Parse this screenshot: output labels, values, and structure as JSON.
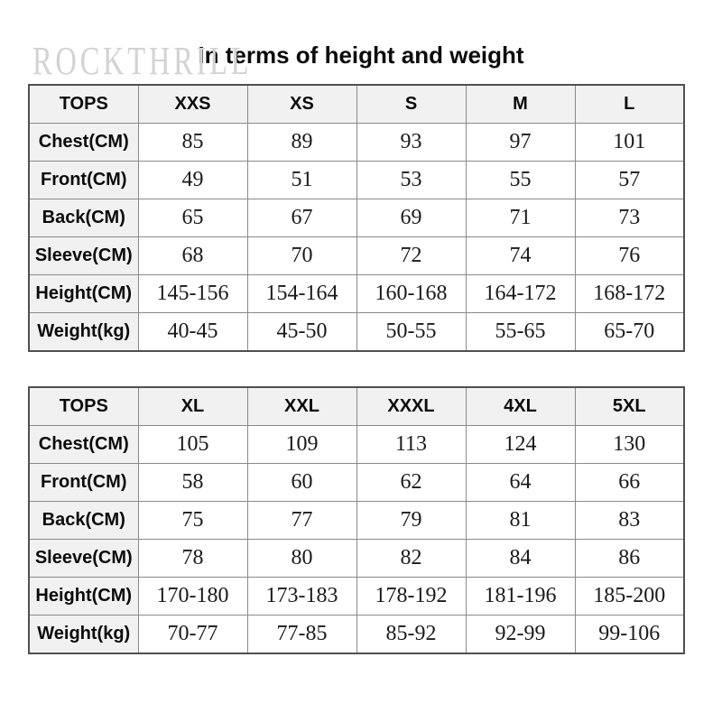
{
  "watermark": "ROCKTHRILL",
  "title": "In terms of height and weight",
  "tables": [
    {
      "name": "sizes-xxs-to-l",
      "header": [
        "TOPS",
        "XXS",
        "XS",
        "S",
        "M",
        "L"
      ],
      "rows": [
        {
          "label": "Chest(CM)",
          "values": [
            "85",
            "89",
            "93",
            "97",
            "101"
          ]
        },
        {
          "label": "Front(CM)",
          "values": [
            "49",
            "51",
            "53",
            "55",
            "57"
          ]
        },
        {
          "label": "Back(CM)",
          "values": [
            "65",
            "67",
            "69",
            "71",
            "73"
          ]
        },
        {
          "label": "Sleeve(CM)",
          "values": [
            "68",
            "70",
            "72",
            "74",
            "76"
          ]
        },
        {
          "label": "Height(CM)",
          "values": [
            "145-156",
            "154-164",
            "160-168",
            "164-172",
            "168-172"
          ]
        },
        {
          "label": "Weight(kg)",
          "values": [
            "40-45",
            "45-50",
            "50-55",
            "55-65",
            "65-70"
          ]
        }
      ]
    },
    {
      "name": "sizes-xl-to-5xl",
      "header": [
        "TOPS",
        "XL",
        "XXL",
        "XXXL",
        "4XL",
        "5XL"
      ],
      "rows": [
        {
          "label": "Chest(CM)",
          "values": [
            "105",
            "109",
            "113",
            "124",
            "130"
          ]
        },
        {
          "label": "Front(CM)",
          "values": [
            "58",
            "60",
            "62",
            "64",
            "66"
          ]
        },
        {
          "label": "Back(CM)",
          "values": [
            "75",
            "77",
            "79",
            "81",
            "83"
          ]
        },
        {
          "label": "Sleeve(CM)",
          "values": [
            "78",
            "80",
            "82",
            "84",
            "86"
          ]
        },
        {
          "label": "Height(CM)",
          "values": [
            "170-180",
            "173-183",
            "178-192",
            "181-196",
            "185-200"
          ]
        },
        {
          "label": "Weight(kg)",
          "values": [
            "70-77",
            "77-85",
            "85-92",
            "92-99",
            "99-106"
          ]
        }
      ]
    }
  ],
  "colors": {
    "header_background": "#f1f1f1",
    "inner_border": "#8a8a8a",
    "outer_border": "#4f4f4f",
    "watermark_text": "#d3d3d3",
    "title_text": "#0b0b0b"
  }
}
